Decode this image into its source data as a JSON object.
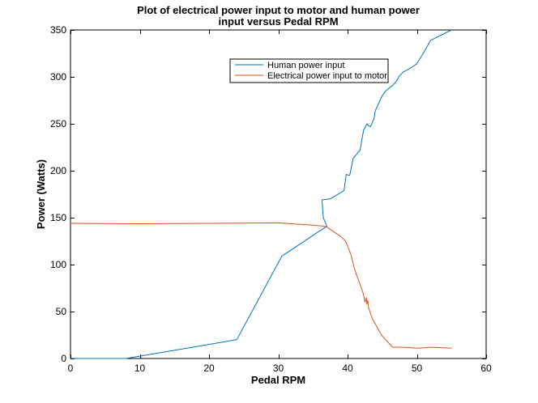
{
  "chart_data": {
    "type": "line",
    "title": [
      "Plot of electrical power input to motor and human power",
      "input versus Pedal RPM"
    ],
    "xlabel": "Pedal RPM",
    "ylabel": "Power (Watts)",
    "xlim": [
      0,
      60
    ],
    "ylim": [
      0,
      350
    ],
    "xticks": [
      0,
      10,
      20,
      30,
      40,
      50,
      60
    ],
    "yticks": [
      0,
      50,
      100,
      150,
      200,
      250,
      300,
      350
    ],
    "grid": false,
    "legend_position": "top-right",
    "series": [
      {
        "name": "Human power input",
        "color": "#0072BD",
        "x": [
          0,
          8,
          24,
          30.5,
          37,
          36.5,
          36.3,
          37.5,
          39.5,
          39.8,
          40.3,
          40.8,
          41,
          41.8,
          42.3,
          42.8,
          43,
          43.3,
          43.8,
          44,
          44.5,
          45,
          45.5,
          46.5,
          47,
          47.5,
          48,
          49,
          50,
          51,
          52,
          55
        ],
        "y": [
          0,
          0,
          20,
          109,
          141,
          150,
          169,
          170,
          179,
          196,
          195,
          213,
          215,
          222,
          243,
          250,
          248,
          247,
          255,
          264,
          272,
          280,
          285,
          291,
          295,
          301,
          305,
          309,
          314,
          326,
          339,
          350
        ]
      },
      {
        "name": "Electrical power input to motor",
        "color": "#D95319",
        "x": [
          0,
          10,
          20,
          30,
          33,
          35,
          36.5,
          37,
          38,
          39,
          39.7,
          40,
          40.5,
          41,
          41.5,
          42,
          42.3,
          42.5,
          42.7,
          42.8,
          42.9,
          43,
          43.3,
          43.6,
          44,
          44.5,
          45,
          45.5,
          46,
          46.5,
          48,
          50,
          52,
          55
        ],
        "y": [
          144,
          143.5,
          144,
          144.5,
          143,
          142,
          141,
          140,
          135,
          130,
          125,
          120,
          110,
          95,
          85,
          75,
          68,
          60,
          65,
          58,
          62,
          55,
          48,
          42,
          37,
          30,
          24,
          20,
          16,
          12,
          12,
          11,
          12,
          11
        ]
      }
    ]
  }
}
